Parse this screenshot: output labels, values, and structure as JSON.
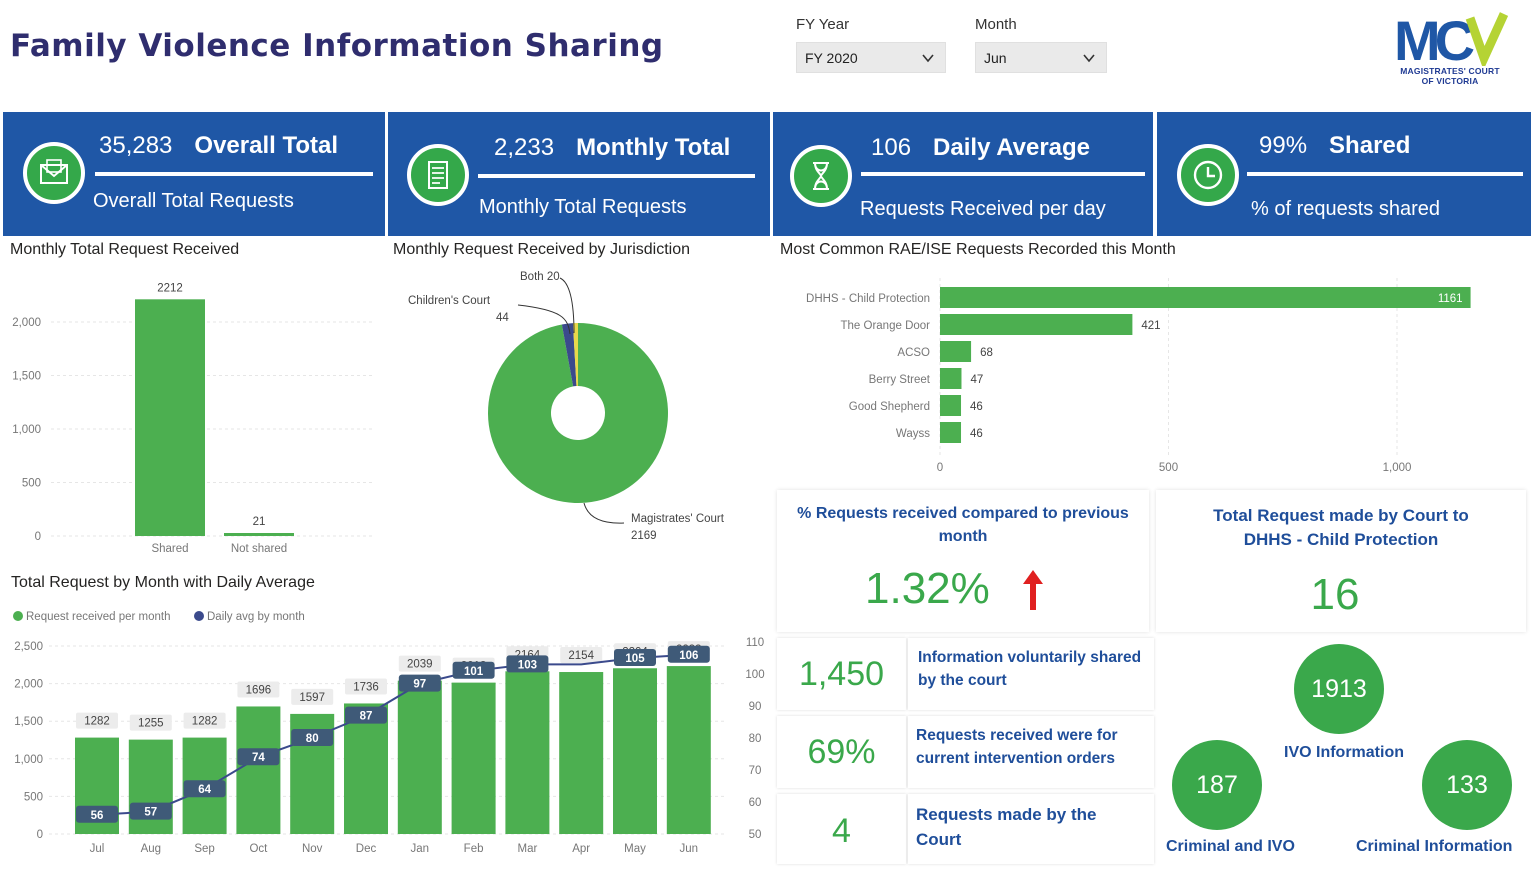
{
  "header": {
    "title": "Family Violence Information Sharing",
    "fy_label": "FY Year",
    "fy_value": "FY 2020",
    "month_label": "Month",
    "month_value": "Jun",
    "logo_sub_line1": "MAGISTRATES' COURT",
    "logo_sub_line2": "OF VICTORIA",
    "logo_text": "MCV"
  },
  "kpis": [
    {
      "value": "35,283",
      "title": "Overall  Total",
      "subtitle": "Overall Total Requests",
      "icon": "envelope-icon"
    },
    {
      "value": "2,233",
      "title": "Monthly Total",
      "subtitle": "Monthly Total Requests",
      "icon": "checklist-icon"
    },
    {
      "value": "106",
      "title": "Daily Average",
      "subtitle": "Requests Received per day",
      "icon": "hourglass-icon"
    },
    {
      "value": "99%",
      "title": "Shared",
      "subtitle": "% of requests shared",
      "icon": "clock-icon"
    }
  ],
  "charts": [
    {
      "type": "bar",
      "title": "Monthly Total Request Received",
      "categories": [
        "Shared",
        "Not shared"
      ],
      "values": [
        2212,
        21
      ],
      "ylim": [
        0,
        2000
      ],
      "yticks": [
        0,
        500,
        1000,
        1500,
        2000
      ],
      "ytick_labels": [
        "0",
        "500",
        "1,000",
        "1,500",
        "2,000"
      ],
      "color": "#4caf50"
    },
    {
      "type": "pie",
      "title": "Monthly Request Received by Jurisdiction",
      "slices": [
        {
          "name": "Magistrates' Court",
          "value": 2169,
          "color": "#4caf50"
        },
        {
          "name": "Children's Court",
          "value": 44,
          "color": "#3b4a8c"
        },
        {
          "name": "Both",
          "value": 20,
          "color": "#e8d84a"
        }
      ],
      "labels": [
        "Magistrates' Court",
        "2169",
        "Children's Court",
        "44",
        "Both 20"
      ]
    },
    {
      "type": "bar",
      "orientation": "horizontal",
      "title": "Most Common RAE/ISE Requests Recorded this Month",
      "categories": [
        "DHHS - Child Protection",
        "The Orange Door",
        "ACSO",
        "Berry Street",
        "Good Shepherd",
        "Wayss"
      ],
      "values": [
        1161,
        421,
        68,
        47,
        46,
        46
      ],
      "xlim": [
        0,
        1150
      ],
      "xticks": [
        0,
        500,
        1000
      ],
      "xtick_labels": [
        "0",
        "500",
        "1,000"
      ],
      "color": "#4caf50"
    },
    {
      "type": "bar+line",
      "title": "Total Request by Month with Daily Average",
      "legend": [
        "Request received per month",
        "Daily avg by month"
      ],
      "legend_colors": [
        "#4caf50",
        "#3b4a8c"
      ],
      "categories": [
        "Jul",
        "Aug",
        "Sep",
        "Oct",
        "Nov",
        "Dec",
        "Jan",
        "Feb",
        "Mar",
        "Apr",
        "May",
        "Jun"
      ],
      "series": [
        {
          "name": "Request received per month",
          "values": [
            1282,
            1255,
            1282,
            1696,
            1597,
            1736,
            2039,
            2013,
            2164,
            2154,
            2204,
            2233
          ]
        },
        {
          "name": "Daily avg by month",
          "values": [
            56,
            57,
            64,
            74,
            80,
            87,
            97,
            101,
            103,
            103,
            105,
            106
          ]
        }
      ],
      "line_labels": [
        "56",
        "57",
        "64",
        "74",
        "80",
        "87",
        "97",
        "101",
        "103",
        "",
        "105",
        "106"
      ],
      "ylim": [
        0,
        2500
      ],
      "yticks_left": [
        0,
        500,
        1000,
        1500,
        2000,
        2500
      ],
      "ytick_left_labels": [
        "0",
        "500",
        "1,000",
        "1,500",
        "2,000",
        "2,500"
      ],
      "ylim_right": [
        50,
        110
      ],
      "yticks_right": [
        50,
        60,
        70,
        80,
        90,
        100,
        110
      ]
    }
  ],
  "pct_prev": {
    "title": "% Requests received compared to previous month",
    "value": "1.32%",
    "arrow": "arrow-up-icon"
  },
  "dhhs_total": {
    "title": "Total Request made by Court to DHHS - Child Protection",
    "value": "16"
  },
  "stats": [
    {
      "value": "1,450",
      "text": "Information voluntarily shared by the court"
    },
    {
      "value": "69%",
      "text": "Requests received were for current intervention orders"
    },
    {
      "value": "4",
      "text": "Requests made by the Court"
    }
  ],
  "bubbles": [
    {
      "value": "1913",
      "label": "IVO Information"
    },
    {
      "value": "187",
      "label": "Criminal and IVO"
    },
    {
      "value": "133",
      "label": "Criminal Information"
    }
  ],
  "colors": {
    "brand_blue": "#1f57a6",
    "green": "#4caf50",
    "navy": "#3b4a8c",
    "red": "#e02020"
  }
}
